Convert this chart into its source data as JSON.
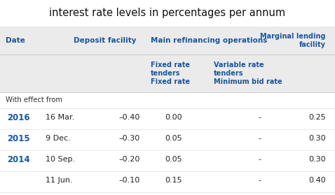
{
  "title": "interest rate levels in percentages per annum",
  "title_fontsize": 10.5,
  "bg_gray": "#ebebeb",
  "white_bg": "#ffffff",
  "blue_color": "#1a56a0",
  "dark_text": "#222222",
  "with_effect_label": "With effect from",
  "rows": [
    {
      "year": "2016",
      "date": "16 Mar.",
      "deposit": "–0.40",
      "fixed": "0.00",
      "variable": "-",
      "marginal": "0.25"
    },
    {
      "year": "2015",
      "date": "9 Dec.",
      "deposit": "–0.30",
      "fixed": "0.05",
      "variable": "-",
      "marginal": "0.30"
    },
    {
      "year": "2014",
      "date": "10 Sep.",
      "deposit": "–0.20",
      "fixed": "0.05",
      "variable": "-",
      "marginal": "0.30"
    },
    {
      "year": "",
      "date": "11 Jun.",
      "deposit": "–0.10",
      "fixed": "0.15",
      "variable": "-",
      "marginal": "0.40"
    }
  ]
}
